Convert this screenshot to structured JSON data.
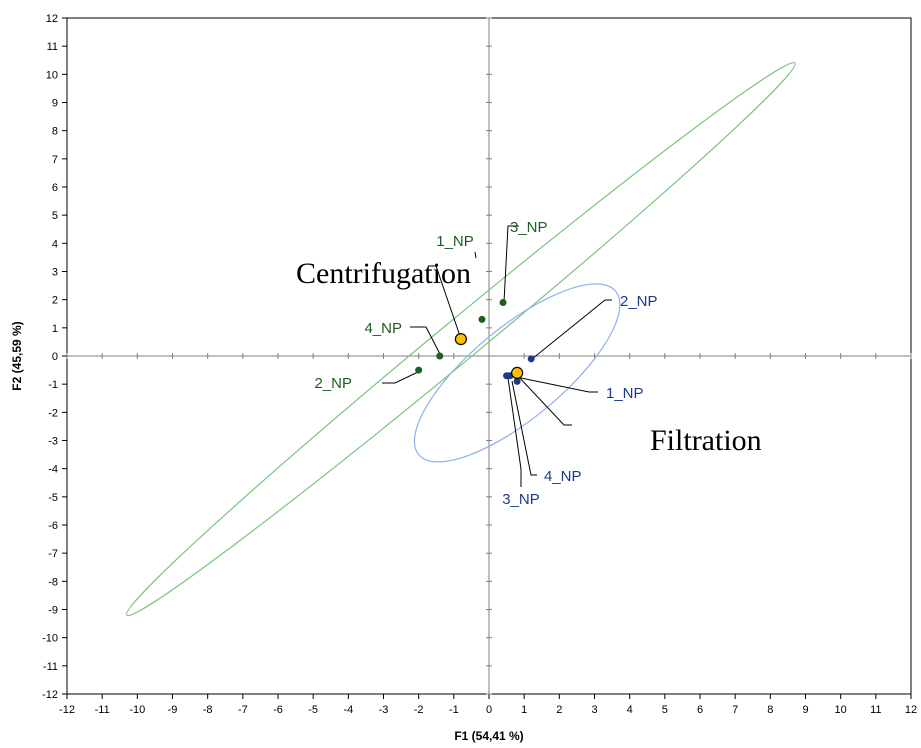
{
  "chart_data": {
    "type": "scatter",
    "xlabel": "F1 (54,41 %)",
    "ylabel": "F2 (45,59 %)",
    "xlim": [
      -12,
      12
    ],
    "ylim": [
      -12,
      12
    ],
    "grid": false,
    "xticks": [
      "-12",
      "-11",
      "-10",
      "-9",
      "-8",
      "-7",
      "-6",
      "-5",
      "-4",
      "-3",
      "-2",
      "-1",
      "0",
      "1",
      "2",
      "3",
      "4",
      "5",
      "6",
      "7",
      "8",
      "9",
      "10",
      "11",
      "12"
    ],
    "yticks": [
      "-12",
      "-11",
      "-10",
      "-9",
      "-8",
      "-7",
      "-6",
      "-5",
      "-4",
      "-3",
      "-2",
      "-1",
      "0",
      "1",
      "2",
      "3",
      "4",
      "5",
      "6",
      "7",
      "8",
      "9",
      "10",
      "11",
      "12"
    ],
    "series": [
      {
        "name": "Centrifugation",
        "color": "#1e5e1e",
        "ellipse_color": "#7ac47a",
        "centroid": {
          "x": -0.8,
          "y": 0.6
        },
        "points": [
          {
            "label": "1_NP",
            "x": -0.2,
            "y": 1.3
          },
          {
            "label": "3_NP",
            "x": 0.4,
            "y": 1.9
          },
          {
            "label": "4_NP",
            "x": -1.4,
            "y": 0.0
          },
          {
            "label": "2_NP",
            "x": -2.0,
            "y": -0.5
          }
        ],
        "ellipse": {
          "center": [
            -0.8,
            0.6
          ],
          "vertex_a": [
            8.7,
            10.4
          ],
          "vertex_b": [
            -10.3,
            -9.2
          ],
          "minor_half": 0.57
        }
      },
      {
        "name": "Filtration",
        "color": "#1a3a8c",
        "ellipse_color": "#8fb0ee",
        "centroid": {
          "x": 0.8,
          "y": -0.6
        },
        "points": [
          {
            "label": "2_NP",
            "x": 1.2,
            "y": -0.1
          },
          {
            "label": "1_NP",
            "x": 0.8,
            "y": -0.9
          },
          {
            "label": "4_NP",
            "x": 0.6,
            "y": -0.7
          },
          {
            "label": "3_NP",
            "x": 0.5,
            "y": -0.7
          }
        ],
        "ellipse": {
          "center": [
            0.8,
            -0.6
          ],
          "vertex_a": [
            3.6,
            2.3
          ],
          "vertex_b": [
            -2.0,
            -3.5
          ],
          "minor_half": 1.3
        }
      }
    ]
  }
}
